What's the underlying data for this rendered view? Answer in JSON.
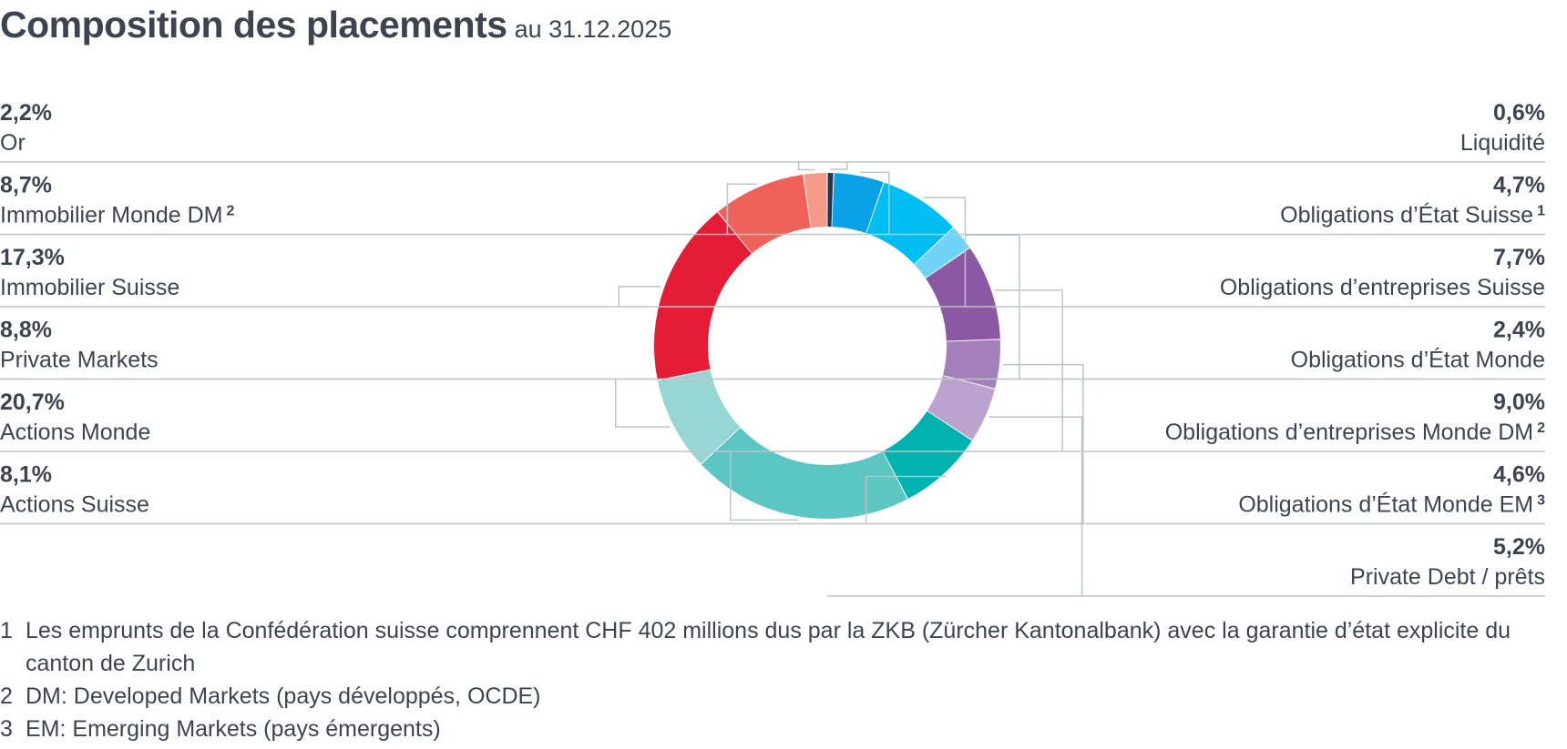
{
  "title": "Composition des placements",
  "subtitle": "au 31.12.2025",
  "chart_data": {
    "type": "pie",
    "variant": "donut",
    "title": "Composition des placements",
    "subtitle": "au 31.12.2025",
    "start": "12 o'clock, clockwise",
    "slices": [
      {
        "label": "Liquidité",
        "sup": "",
        "value": 0.6,
        "value_label": "0,6%",
        "color": "#24364f",
        "side": "right"
      },
      {
        "label": "Obligations d’État Suisse",
        "sup": "1",
        "value": 4.7,
        "value_label": "4,7%",
        "color": "#0aa2e6",
        "side": "right"
      },
      {
        "label": "Obligations d’entreprises Suisse",
        "sup": "",
        "value": 7.7,
        "value_label": "7,7%",
        "color": "#00bef2",
        "side": "right"
      },
      {
        "label": "Obligations d’État Monde",
        "sup": "",
        "value": 2.4,
        "value_label": "2,4%",
        "color": "#6fd3f8",
        "side": "right"
      },
      {
        "label": "Obligations d’entreprises Monde DM",
        "sup": "2",
        "value": 9.0,
        "value_label": "9,0%",
        "color": "#8b58a3",
        "side": "right"
      },
      {
        "label": "Obligations d’État Monde EM",
        "sup": "3",
        "value": 4.6,
        "value_label": "4,6%",
        "color": "#a57fbb",
        "side": "right"
      },
      {
        "label": "Private Debt / prêts",
        "sup": "",
        "value": 5.2,
        "value_label": "5,2%",
        "color": "#bca2cf",
        "side": "right"
      },
      {
        "label": "Actions Suisse",
        "sup": "",
        "value": 8.1,
        "value_label": "8,1%",
        "color": "#00b3b0",
        "side": "left"
      },
      {
        "label": "Actions Monde",
        "sup": "",
        "value": 20.7,
        "value_label": "20,7%",
        "color": "#5cc6c2",
        "side": "left"
      },
      {
        "label": "Private Markets",
        "sup": "",
        "value": 8.8,
        "value_label": "8,8%",
        "color": "#96d6d4",
        "side": "left"
      },
      {
        "label": "Immobilier Suisse",
        "sup": "",
        "value": 17.3,
        "value_label": "17,3%",
        "color": "#e41c36",
        "side": "left"
      },
      {
        "label": "Immobilier Monde DM",
        "sup": "2",
        "value": 8.7,
        "value_label": "8,7%",
        "color": "#ee6259",
        "side": "left"
      },
      {
        "label": "Or",
        "sup": "",
        "value": 2.2,
        "value_label": "2,2%",
        "color": "#f39b87",
        "side": "left"
      }
    ]
  },
  "footnotes": [
    {
      "num": "1",
      "text": "Les emprunts de la Confédération suisse comprennent CHF 402 millions dus par la ZKB (Zürcher Kantonalbank) avec la garantie d’état expli­cite du canton de Zurich"
    },
    {
      "num": "2",
      "text": "DM: Developed Markets (pays développés, OCDE)"
    },
    {
      "num": "3",
      "text": "EM: Emerging Markets (pays émergents)"
    }
  ]
}
